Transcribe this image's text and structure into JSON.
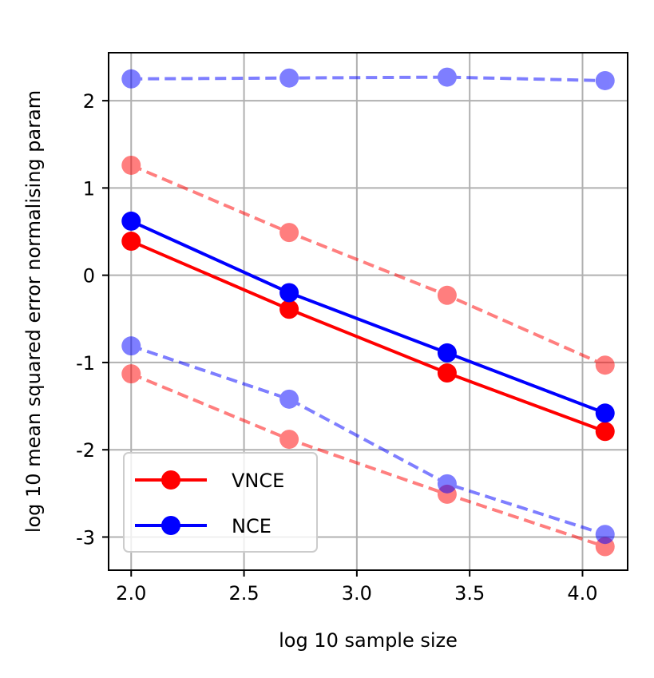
{
  "chart_data": {
    "type": "line",
    "xlabel": "log 10 sample size",
    "ylabel": "log 10 mean squared error normalising param",
    "xlim": [
      1.9,
      4.2
    ],
    "ylim": [
      -3.38,
      2.55
    ],
    "xticks": [
      2.0,
      2.5,
      3.0,
      3.5,
      4.0
    ],
    "xtick_labels": [
      "2.0",
      "2.5",
      "3.0",
      "3.5",
      "4.0"
    ],
    "yticks": [
      -3,
      -2,
      -1,
      0,
      1,
      2
    ],
    "ytick_labels": [
      "-3",
      "-2",
      "-1",
      "0",
      "1",
      "2"
    ],
    "grid": true,
    "legend": {
      "placement": "lower-left",
      "entries": [
        {
          "label": "VNCE",
          "color": "#ff0000"
        },
        {
          "label": "NCE",
          "color": "#0000ff"
        }
      ]
    },
    "x": [
      2.0,
      2.7,
      3.4,
      4.1
    ],
    "series": [
      {
        "name": "VNCE",
        "color": "#ff0000",
        "style": "solid",
        "values": [
          0.39,
          -0.39,
          -1.12,
          -1.79
        ]
      },
      {
        "name": "NCE",
        "color": "#0000ff",
        "style": "solid",
        "values": [
          0.62,
          -0.2,
          -0.89,
          -1.58
        ]
      },
      {
        "color": "#ff0000",
        "style": "dashed",
        "values": [
          1.26,
          0.49,
          -0.23,
          -1.03
        ]
      },
      {
        "color": "#ff0000",
        "style": "dashed",
        "values": [
          -1.13,
          -1.88,
          -2.51,
          -3.11
        ]
      },
      {
        "color": "#0000ff",
        "style": "dashed",
        "values": [
          2.25,
          2.26,
          2.27,
          2.23
        ]
      },
      {
        "color": "#0000ff",
        "style": "dashed",
        "values": [
          -0.81,
          -1.42,
          -2.39,
          -2.97
        ]
      }
    ]
  }
}
